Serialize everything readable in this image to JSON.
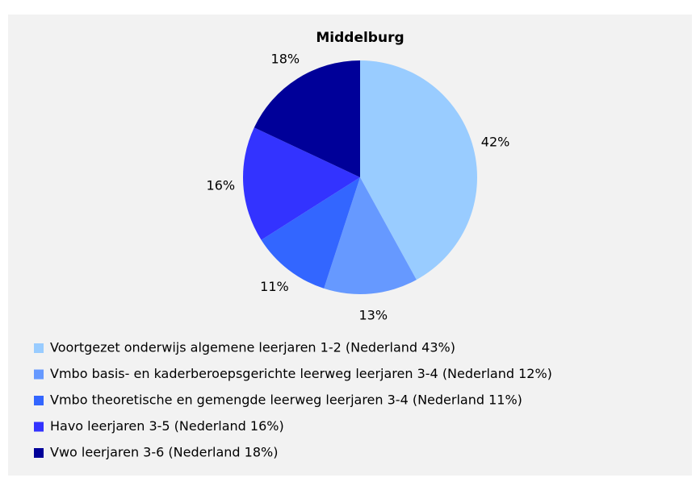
{
  "chart_data": {
    "type": "pie",
    "title": "Middelburg",
    "categories": [
      "Voortgezet onderwijs algemene leerjaren 1-2 (Nederland 43%)",
      "Vmbo basis- en kaderberoepsgerichte leerweg leerjaren 3-4 (Nederland 12%)",
      "Vmbo theoretische en gemengde leerweg leerjaren 3-4 (Nederland 11%)",
      "Havo leerjaren 3-5 (Nederland 16%)",
      "Vwo leerjaren 3-6 (Nederland 18%)"
    ],
    "values": [
      42,
      13,
      11,
      16,
      18
    ],
    "value_labels": [
      "42%",
      "13%",
      "11%",
      "16%",
      "18%"
    ],
    "colors": [
      "#99ccff",
      "#6699ff",
      "#3366ff",
      "#3333ff",
      "#000099"
    ]
  }
}
